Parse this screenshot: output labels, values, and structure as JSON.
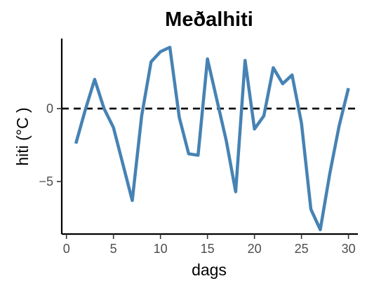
{
  "chart_data": {
    "type": "line",
    "title": "Meðalhiti",
    "xlabel": "dags",
    "ylabel": "hiti (°C )",
    "xlim": [
      -0.5,
      31.0
    ],
    "ylim": [
      -8.6,
      4.8
    ],
    "x_ticks": [
      0,
      5,
      10,
      15,
      20,
      25,
      30
    ],
    "x_tick_labels": [
      "0",
      "5",
      "10",
      "15",
      "20",
      "25",
      "30"
    ],
    "y_ticks": [
      -5,
      0
    ],
    "y_tick_labels": [
      "−5",
      "0"
    ],
    "reference_line": {
      "y": 0,
      "style": "dashed",
      "color": "#000000"
    },
    "grid": false,
    "colors": {
      "line": "#4682B4",
      "axis": "#000000",
      "tick_text": "#4d4d4d"
    },
    "series": [
      {
        "x": [
          1,
          2,
          3,
          4,
          5,
          6,
          7,
          8,
          9,
          10,
          11,
          12,
          13,
          14,
          15,
          16,
          17,
          18,
          19,
          20,
          21,
          22,
          23,
          24,
          25,
          26,
          27,
          28,
          29,
          30
        ],
        "values": [
          -2.4,
          -0.1,
          2.0,
          0.0,
          -1.3,
          -3.8,
          -6.3,
          -0.5,
          3.2,
          3.9,
          4.2,
          -0.6,
          -3.1,
          -3.2,
          3.4,
          0.6,
          -2.2,
          -5.7,
          3.3,
          -1.4,
          -0.5,
          2.8,
          1.7,
          2.3,
          -1.0,
          -6.9,
          -8.3,
          -4.5,
          -1.2,
          1.4
        ]
      }
    ]
  }
}
